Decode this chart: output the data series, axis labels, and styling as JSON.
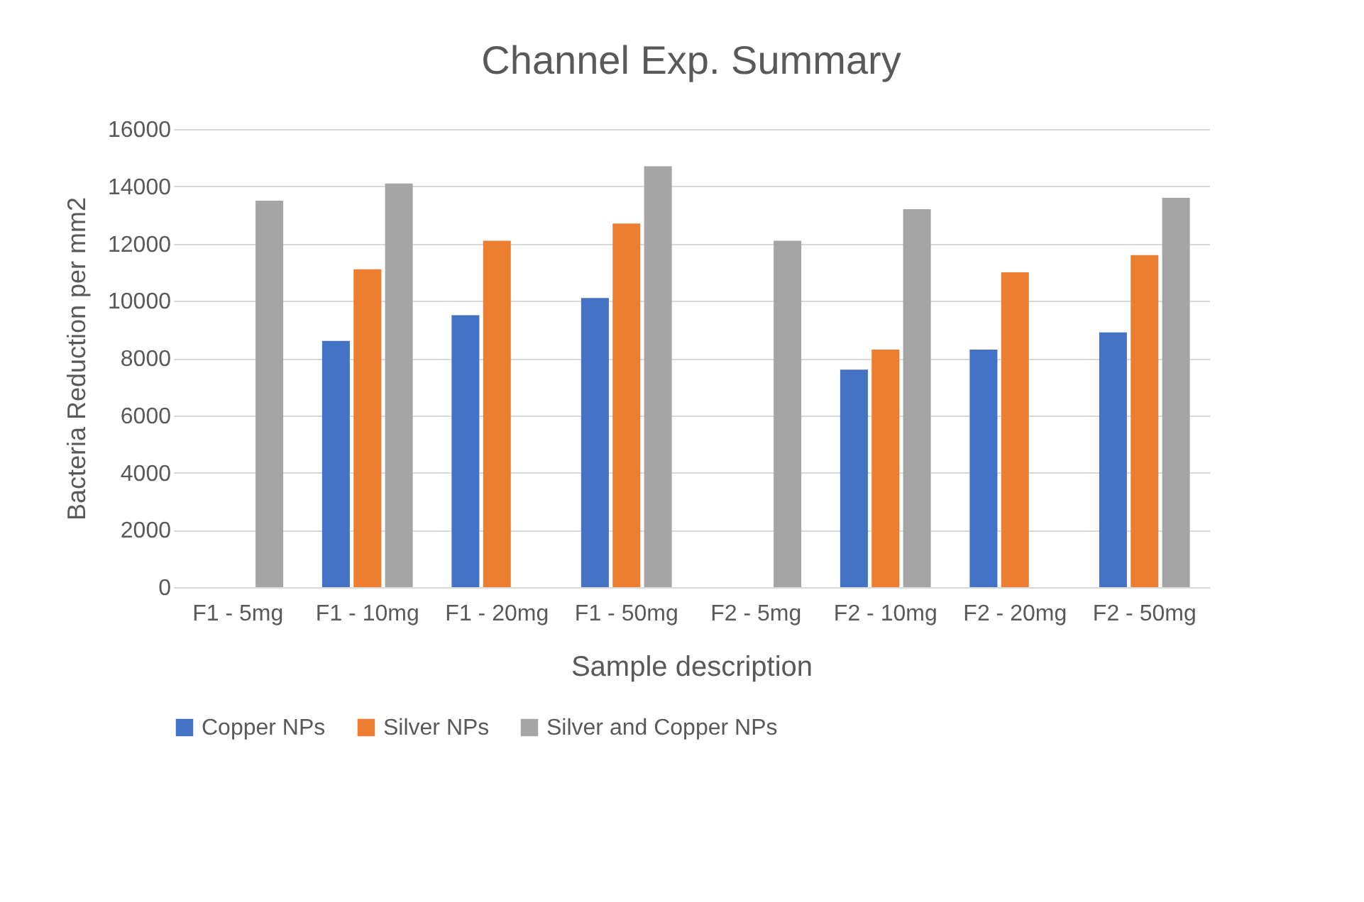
{
  "chart_data": {
    "type": "bar",
    "title": "Channel Exp. Summary",
    "xlabel": "Sample description",
    "ylabel": "Bacteria Reduction  per mm2",
    "categories": [
      "F1 - 5mg",
      "F1 - 10mg",
      "F1 - 20mg",
      "F1 - 50mg",
      "F2 - 5mg",
      "F2 - 10mg",
      "F2 - 20mg",
      "F2 - 50mg"
    ],
    "series": [
      {
        "name": "Copper NPs",
        "color": "#4472c4",
        "values": [
          null,
          8600,
          9500,
          10100,
          null,
          7600,
          8300,
          8900
        ]
      },
      {
        "name": "Silver NPs",
        "color": "#ed7d31",
        "values": [
          null,
          11100,
          12100,
          12700,
          null,
          8300,
          11000,
          11600
        ]
      },
      {
        "name": "Silver and Copper NPs",
        "color": "#a5a5a5",
        "values": [
          13500,
          14100,
          null,
          14700,
          12100,
          13200,
          null,
          13600
        ]
      }
    ],
    "ylim": [
      0,
      16000
    ],
    "yticks": [
      0,
      2000,
      4000,
      6000,
      8000,
      10000,
      12000,
      14000,
      16000
    ],
    "grid": "y",
    "legend": "bottom"
  }
}
